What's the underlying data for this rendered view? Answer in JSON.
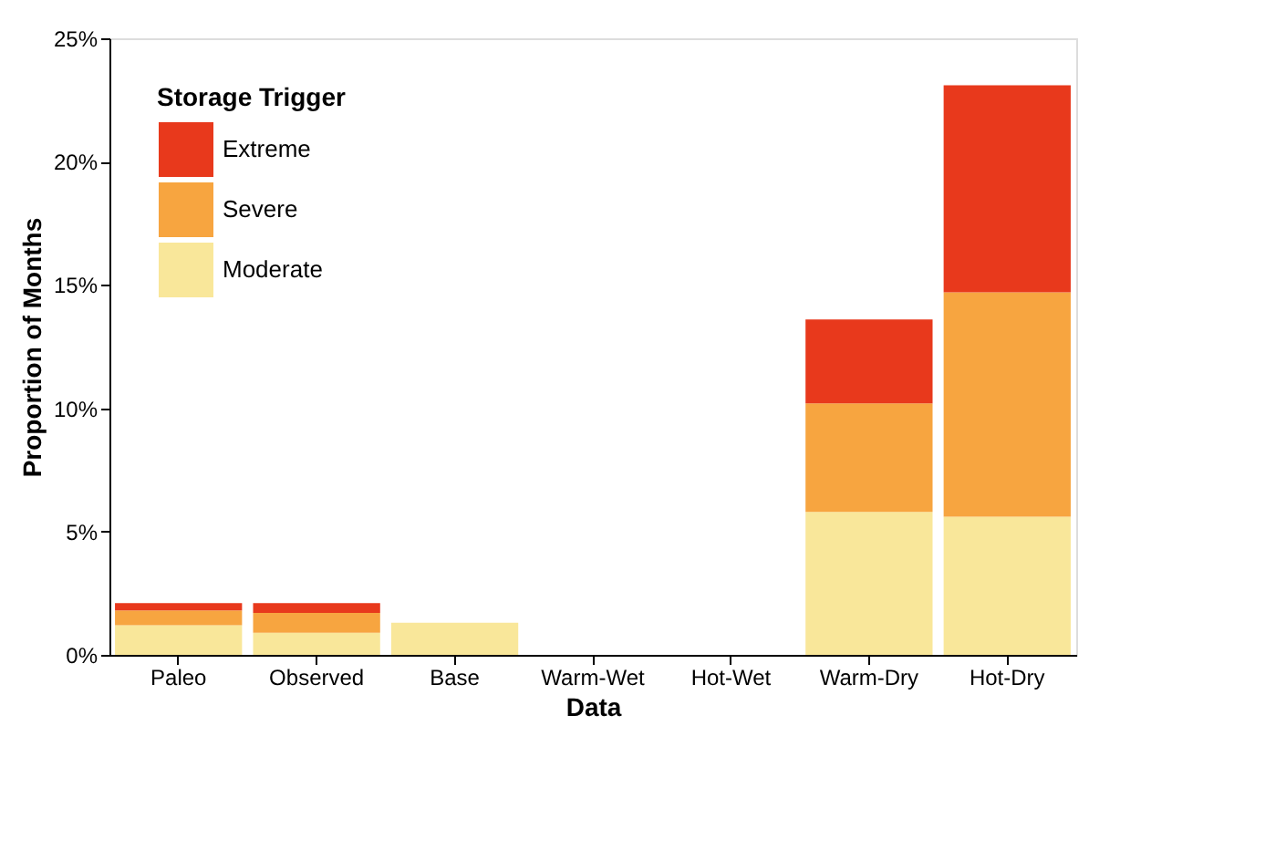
{
  "chart_data": {
    "type": "bar",
    "stacked": true,
    "xlabel": "Data",
    "ylabel": "Proportion of Months",
    "legend_title": "Storage Trigger",
    "legend": "top left",
    "grid": false,
    "categories": [
      "Paleo",
      "Observed",
      "Base",
      "Warm-Wet",
      "Hot-Wet",
      "Warm-Dry",
      "Hot-Dry"
    ],
    "ylim": [
      0,
      25
    ],
    "yticks": [
      {
        "value": 0,
        "label": "0%"
      },
      {
        "value": 5,
        "label": "5%"
      },
      {
        "value": 10,
        "label": "10%"
      },
      {
        "value": 15,
        "label": "15%"
      },
      {
        "value": 20,
        "label": "20%"
      },
      {
        "value": 25,
        "label": "25%"
      }
    ],
    "series": [
      {
        "name": "Moderate",
        "color": "#f9e79a",
        "values": [
          1.2,
          0.9,
          1.3,
          0,
          0,
          5.8,
          5.6
        ]
      },
      {
        "name": "Severe",
        "color": "#f7a540",
        "values": [
          0.6,
          0.8,
          0,
          0,
          0,
          4.4,
          9.1
        ]
      },
      {
        "name": "Extreme",
        "color": "#e8391c",
        "values": [
          0.3,
          0.4,
          0,
          0,
          0,
          3.4,
          8.4
        ]
      }
    ]
  }
}
